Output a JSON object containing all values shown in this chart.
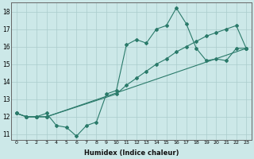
{
  "xlabel": "Humidex (Indice chaleur)",
  "background_color": "#cce8e8",
  "grid_color": "#aacccc",
  "line_color": "#2a7a6a",
  "xlim": [
    -0.5,
    23.5
  ],
  "ylim": [
    10.7,
    18.5
  ],
  "xticks": [
    0,
    1,
    2,
    3,
    4,
    5,
    6,
    7,
    8,
    9,
    10,
    11,
    12,
    13,
    14,
    15,
    16,
    17,
    18,
    19,
    20,
    21,
    22,
    23
  ],
  "yticks": [
    11,
    12,
    13,
    14,
    15,
    16,
    17,
    18
  ],
  "series1_x": [
    0,
    1,
    2,
    3,
    4,
    5,
    6,
    7,
    8,
    9,
    10,
    11,
    12,
    13,
    14,
    15,
    16,
    17,
    18,
    19,
    20,
    21,
    22,
    23
  ],
  "series1_y": [
    12.2,
    12.0,
    12.0,
    12.2,
    11.5,
    11.4,
    10.9,
    11.5,
    11.7,
    13.3,
    13.5,
    16.1,
    16.4,
    16.2,
    17.0,
    17.2,
    18.2,
    17.3,
    15.9,
    15.2,
    15.3,
    15.2,
    15.9,
    15.9
  ],
  "series2_x": [
    0,
    1,
    2,
    3,
    23
  ],
  "series2_y": [
    12.2,
    12.0,
    12.0,
    12.0,
    15.9
  ],
  "series3_x": [
    0,
    1,
    2,
    3,
    10,
    11,
    12,
    13,
    14,
    15,
    16,
    17,
    18,
    19,
    20,
    21,
    22,
    23
  ],
  "series3_y": [
    12.2,
    12.0,
    12.0,
    12.0,
    13.3,
    13.8,
    14.2,
    14.6,
    15.0,
    15.3,
    15.7,
    16.0,
    16.3,
    16.6,
    16.8,
    17.0,
    17.2,
    15.9
  ]
}
